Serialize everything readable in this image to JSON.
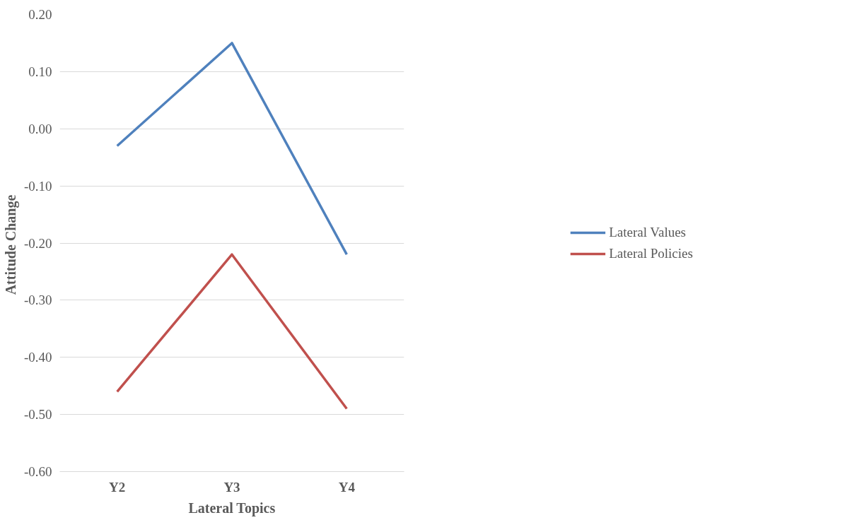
{
  "chart_data": {
    "type": "line",
    "xlabel": "Lateral Topics",
    "ylabel": "Attitude  Change",
    "categories": [
      "Y2",
      "Y3",
      "Y4"
    ],
    "series": [
      {
        "name": "Lateral Values",
        "color": "#4f81bd",
        "values": [
          -0.03,
          0.15,
          -0.22
        ]
      },
      {
        "name": "Lateral Policies",
        "color": "#c0504d",
        "values": [
          -0.46,
          -0.22,
          -0.49
        ]
      }
    ],
    "ylim": [
      -0.6,
      0.2
    ],
    "yticks": [
      {
        "value": -0.6,
        "label": "-0.60"
      },
      {
        "value": -0.5,
        "label": "-0.50"
      },
      {
        "value": -0.4,
        "label": "-0.40"
      },
      {
        "value": -0.3,
        "label": "-0.30"
      },
      {
        "value": -0.2,
        "label": "-0.20"
      },
      {
        "value": -0.1,
        "label": "-0.10"
      },
      {
        "value": 0,
        "label": "0.00"
      },
      {
        "value": 0.1,
        "label": "0.10"
      },
      {
        "value": 0.2,
        "label": "0.20"
      }
    ],
    "grid": "y",
    "legend": "right",
    "marker": "none",
    "line_style": "solid"
  }
}
